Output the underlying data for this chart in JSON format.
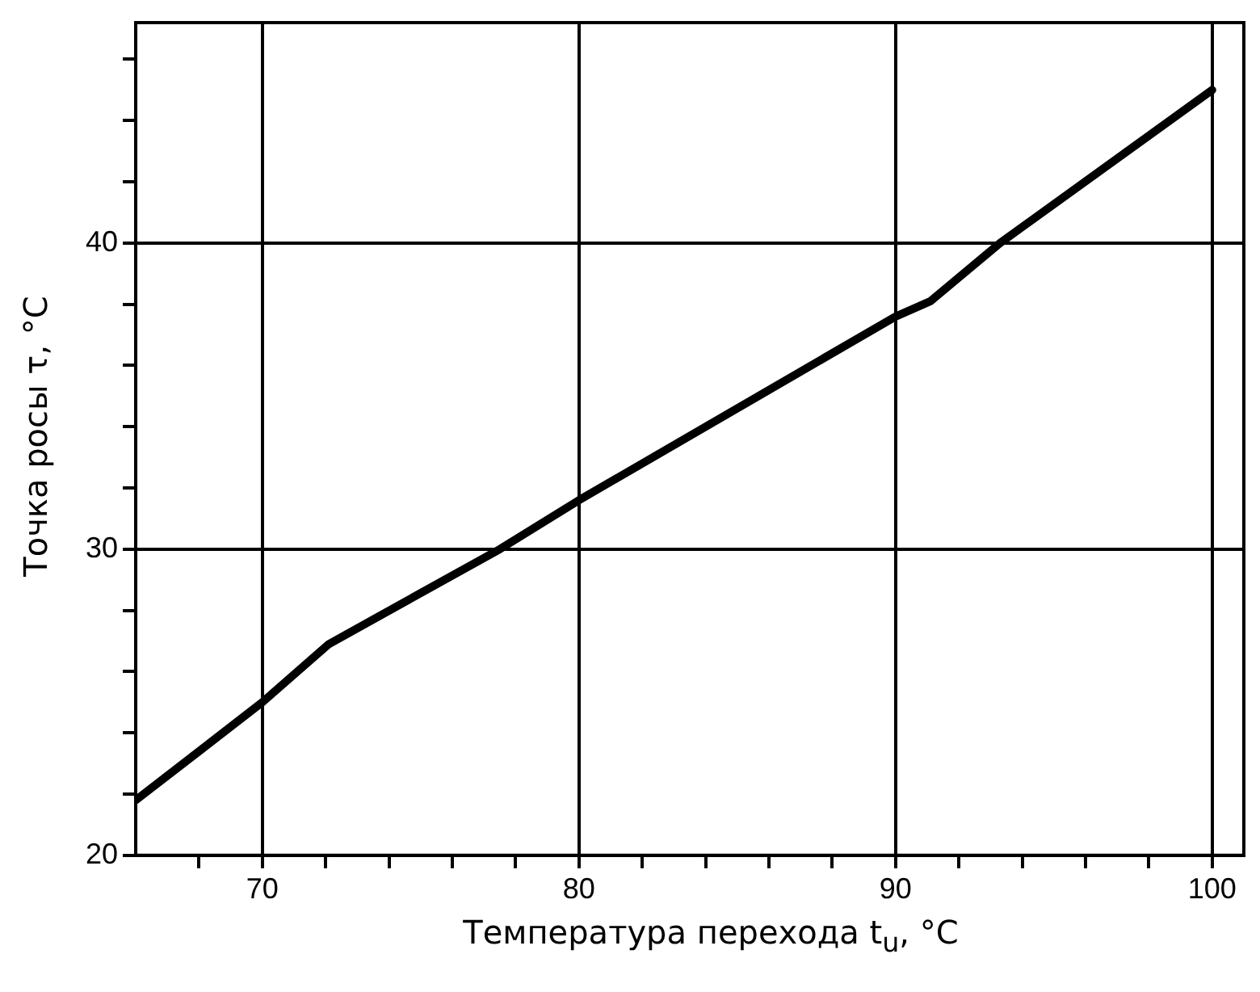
{
  "chart_data": {
    "type": "line",
    "xlabel": "Температура перехода t$_{u}$, °C",
    "ylabel": "Точка росы τ, °C",
    "x": [
      66,
      70,
      72.1,
      77.5,
      80,
      90,
      91.1,
      93.3,
      100
    ],
    "series": [
      {
        "color": "#000000",
        "values": [
          21.8,
          25,
          26.9,
          30,
          31.6,
          37.6,
          38.1,
          40,
          45
        ]
      }
    ],
    "xlim": [
      66,
      101
    ],
    "ylim": [
      20,
      47.2
    ],
    "xticks": [
      {
        "value": 68,
        "label": null
      },
      70,
      {
        "value": 72,
        "label": null
      },
      {
        "value": 74,
        "label": null
      },
      {
        "value": 76,
        "label": null
      },
      {
        "value": 78,
        "label": null
      },
      80,
      {
        "value": 82,
        "label": null
      },
      {
        "value": 84,
        "label": null
      },
      {
        "value": 86,
        "label": null
      },
      {
        "value": 88,
        "label": null
      },
      90,
      {
        "value": 92,
        "label": null
      },
      {
        "value": 94,
        "label": null
      },
      {
        "value": 96,
        "label": null
      },
      {
        "value": 98,
        "label": null
      },
      100
    ],
    "yticks": [
      20,
      {
        "value": 22,
        "label": null
      },
      {
        "value": 24,
        "label": null
      },
      {
        "value": 26,
        "label": null
      },
      {
        "value": 28,
        "label": null
      },
      30,
      {
        "value": 32,
        "label": null
      },
      {
        "value": 34,
        "label": null
      },
      {
        "value": 36,
        "label": null
      },
      {
        "value": 38,
        "label": null
      },
      40,
      {
        "value": 42,
        "label": null
      },
      {
        "value": 44,
        "label": null
      },
      {
        "value": 46,
        "label": null
      }
    ],
    "grid": true,
    "legend": false,
    "marker": "none",
    "line_style": "solid"
  }
}
